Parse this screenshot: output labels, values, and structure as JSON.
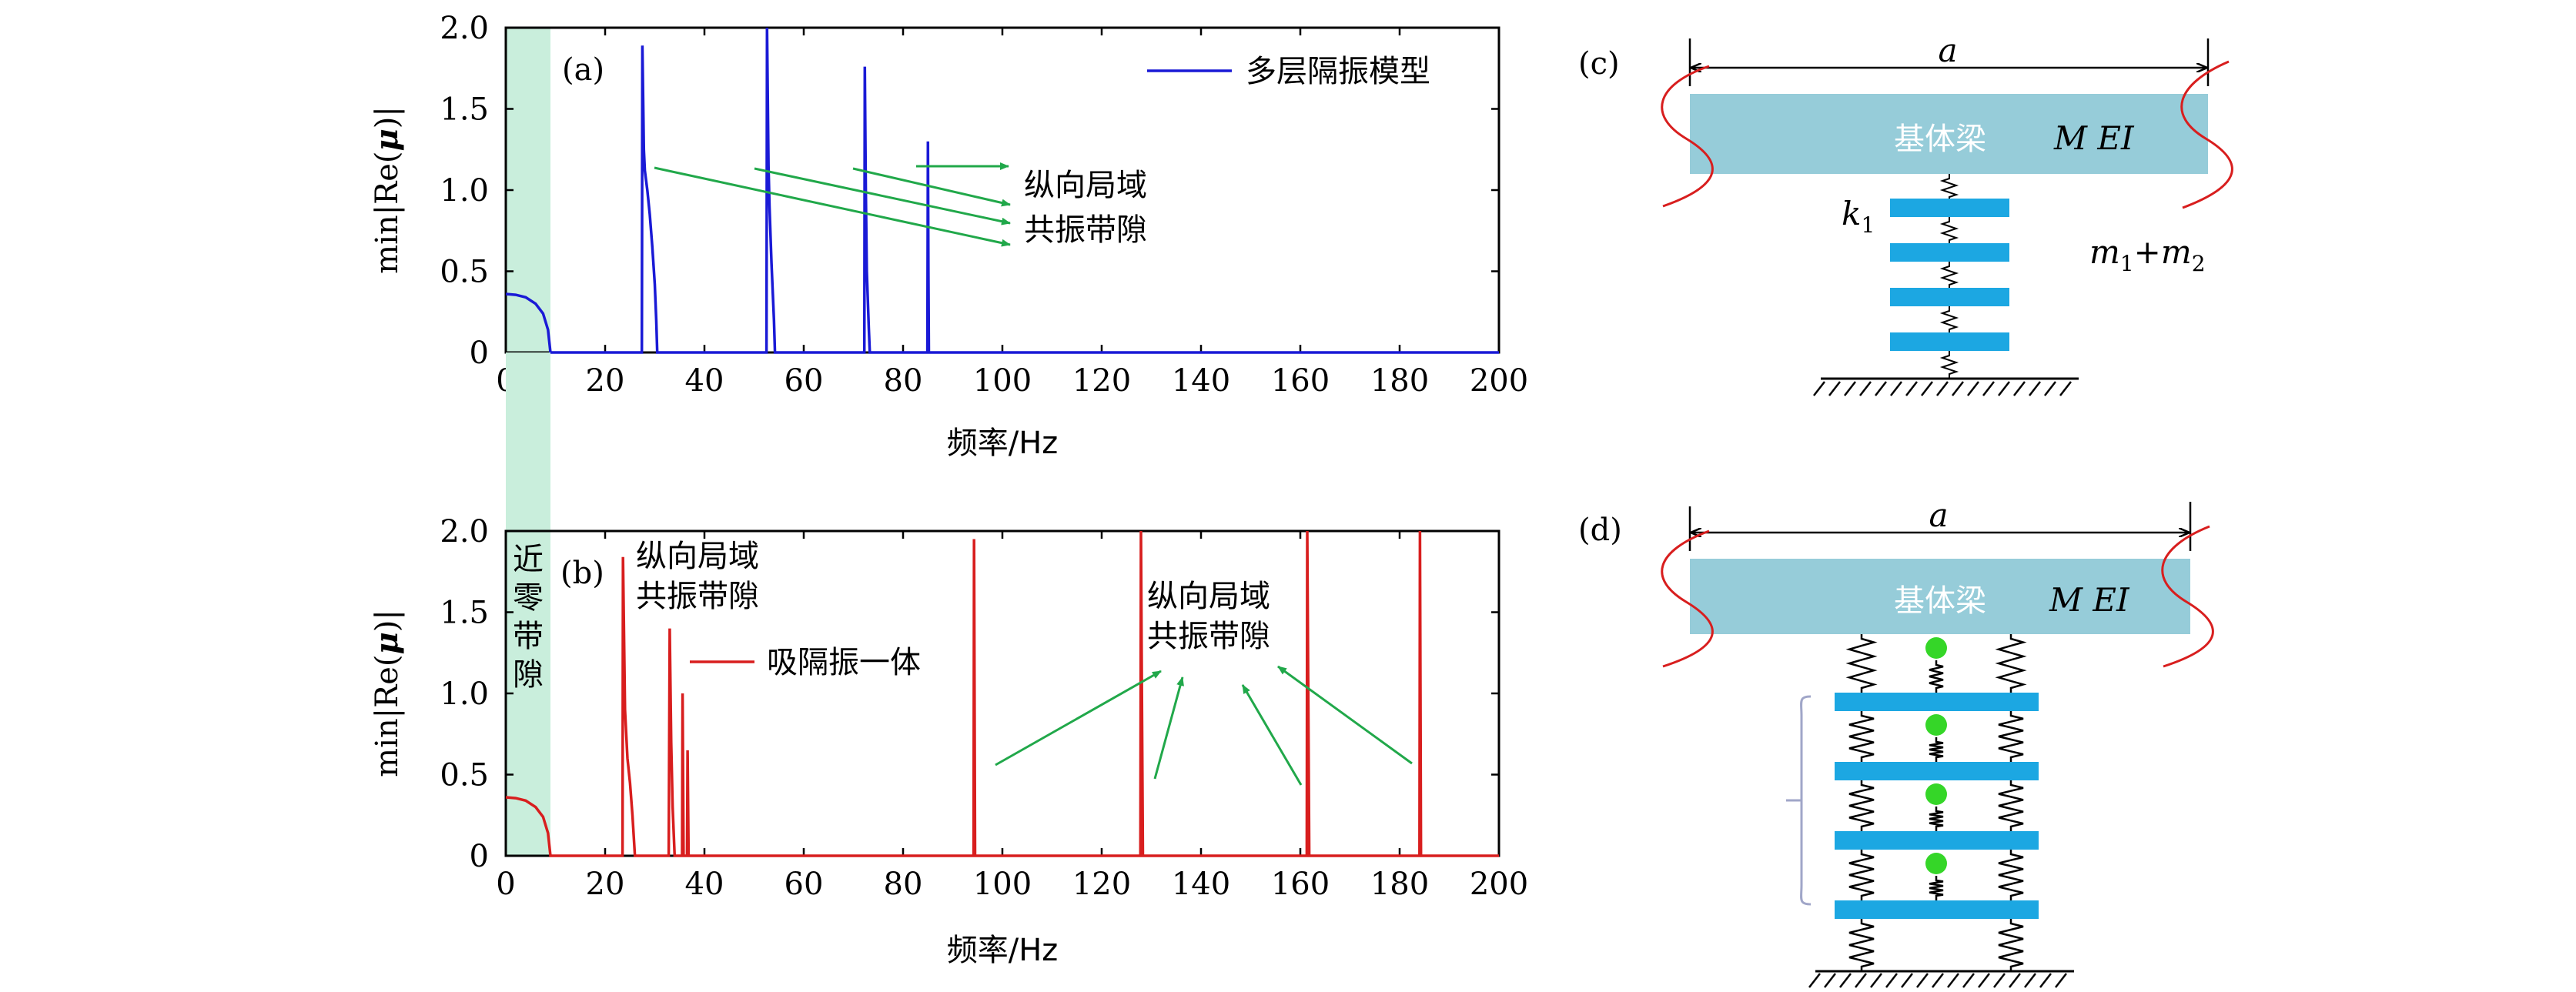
{
  "chart_data": [
    {
      "panel": "a",
      "type": "line",
      "panel_label": "(a)",
      "xlabel": "频率/Hz",
      "ylabel": "min|Re(μ)|",
      "xlim": [
        0,
        200
      ],
      "ylim": [
        0,
        2.0
      ],
      "xticks": [
        "0",
        "20",
        "40",
        "60",
        "80",
        "100",
        "120",
        "140",
        "160",
        "180",
        "200"
      ],
      "yticks": [
        "0",
        "0.5",
        "1.0",
        "1.5",
        "2.0"
      ],
      "legend": "多层隔振模型",
      "color": "#1a1ad6",
      "near_zero_band": [
        0,
        9
      ],
      "x": [
        0,
        2,
        4,
        6,
        7.5,
        8.5,
        9,
        27.4,
        27.5,
        27.8,
        28,
        28.5,
        29,
        29.5,
        30,
        30.3,
        30.5,
        52.5,
        52.6,
        52.9,
        53.1,
        53.5,
        54,
        54.2,
        72.2,
        72.3,
        72.5,
        72.7,
        73.1,
        73.3,
        84.9,
        85,
        85.1,
        85.2,
        200
      ],
      "y": [
        0.36,
        0.355,
        0.34,
        0.3,
        0.24,
        0.14,
        0,
        0,
        1.89,
        1.25,
        1.12,
        1.0,
        0.85,
        0.65,
        0.42,
        0.2,
        0,
        0,
        2.0,
        1.15,
        0.9,
        0.55,
        0.2,
        0,
        0,
        1.76,
        1.0,
        0.5,
        0.15,
        0,
        0,
        1.3,
        0.5,
        0,
        0
      ],
      "annotation": [
        "纵向局域",
        "共振带隙"
      ]
    },
    {
      "panel": "b",
      "type": "line",
      "panel_label": "(b)",
      "xlabel": "频率/Hz",
      "ylabel": "min|Re(μ)|",
      "xlim": [
        0,
        200
      ],
      "ylim": [
        0,
        2.0
      ],
      "xticks": [
        "0",
        "20",
        "40",
        "60",
        "80",
        "100",
        "120",
        "140",
        "160",
        "180",
        "200"
      ],
      "yticks": [
        "0",
        "0.5",
        "1.0",
        "1.5",
        "2.0"
      ],
      "legend": "吸隔振一体",
      "color": "#d81e1e",
      "near_zero_band": [
        0,
        9
      ],
      "x": [
        0,
        2,
        4,
        6,
        7.5,
        8.5,
        9,
        23.5,
        23.6,
        24,
        24.5,
        25,
        25.5,
        26,
        32.8,
        33,
        33.3,
        33.6,
        34,
        35.5,
        35.6,
        35.8,
        36.5,
        36.6,
        36.8,
        94.2,
        94.3,
        94.5,
        127.8,
        127.9,
        128.1,
        128.3,
        161.3,
        161.4,
        161.6,
        161.8,
        184,
        184.1,
        184.3,
        200
      ],
      "y": [
        0.36,
        0.355,
        0.34,
        0.3,
        0.24,
        0.14,
        0,
        0,
        1.84,
        0.9,
        0.6,
        0.45,
        0.25,
        0,
        0,
        1.4,
        0.7,
        0.3,
        0,
        0,
        1.0,
        0,
        0,
        0.65,
        0,
        0,
        1.95,
        0,
        0,
        2.0,
        1.0,
        0,
        0,
        2.0,
        1.0,
        0,
        0,
        2.0,
        0,
        0
      ],
      "annotation1": [
        "纵向局域",
        "共振带隙"
      ],
      "annotation2": [
        "纵向局域",
        "共振带隙"
      ],
      "band_label": [
        "近",
        "零",
        "带",
        "隙"
      ]
    }
  ],
  "diagram_c": {
    "panel_label": "(c)",
    "width_label": "a",
    "beam_label": "基体梁",
    "beam_props": "M  EI",
    "spring_label": "k",
    "spring_sub": "1",
    "mass_label_a": "m",
    "mass_label_sub1": "1",
    "mass_label_plus": "+",
    "mass_label_b": "m",
    "mass_label_sub2": "2"
  },
  "diagram_d": {
    "panel_label": "(d)",
    "width_label": "a",
    "beam_label": "基体梁",
    "beam_props": "M  EI"
  },
  "colors": {
    "beam": "#96ccd9",
    "mass": "#1ca7e2",
    "absorber": "#35d628",
    "band": "#c9eedc",
    "wave": "#d81e1e",
    "arrow": "#21a84a"
  }
}
